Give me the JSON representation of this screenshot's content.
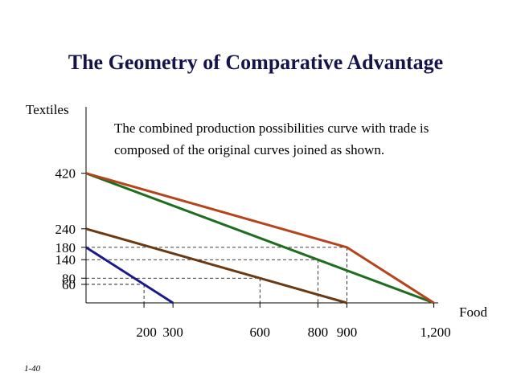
{
  "chart_data": {
    "type": "line",
    "title": "The Geometry of Comparative Advantage",
    "y_label": "Textiles",
    "x_label": "Food",
    "annotation": [
      "The combined production possibilities curve with trade is",
      "composed of the original curves joined as shown."
    ],
    "footer": "1-40",
    "series": [
      {
        "color": "#1a1a8c",
        "x": [
          0,
          300
        ],
        "values": [
          180,
          0
        ]
      },
      {
        "color": "#6b3a12",
        "x": [
          0,
          900
        ],
        "values": [
          240,
          0
        ]
      },
      {
        "color": "#1f6e1f",
        "x": [
          0,
          1200
        ],
        "values": [
          420,
          0
        ]
      },
      {
        "color": "#b5441b",
        "x": [
          0,
          900,
          1200
        ],
        "values": [
          420,
          180,
          0
        ]
      }
    ],
    "guides": [
      {
        "x": 900,
        "y": 180
      },
      {
        "x": 800,
        "y": 140
      },
      {
        "x": 600,
        "y": 80
      },
      {
        "x": 200,
        "y": 60
      }
    ],
    "xlim": [
      0,
      1215
    ],
    "ylim": [
      0,
      630
    ],
    "xticks": [
      200,
      300,
      600,
      800,
      900,
      {
        "value": 1200,
        "label": "1,200"
      }
    ],
    "yticks": [
      420,
      240,
      180,
      140,
      80,
      60
    ]
  }
}
